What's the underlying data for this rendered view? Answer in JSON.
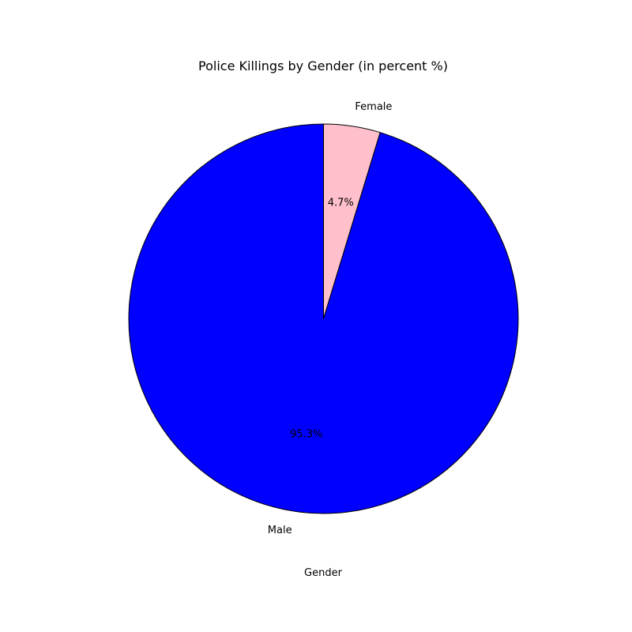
{
  "chart_data": {
    "type": "pie",
    "title": "Police Killings by Gender (in percent %)",
    "xlabel": "Gender",
    "categories": [
      "Female",
      "Male"
    ],
    "values": [
      4.7,
      95.3
    ],
    "percent_labels": [
      "4.7%",
      "95.3%"
    ],
    "colors": [
      "#ffc0cb",
      "#0000ff"
    ],
    "edge_color": "#000000",
    "start_angle": 90,
    "direction": "clockwise"
  }
}
